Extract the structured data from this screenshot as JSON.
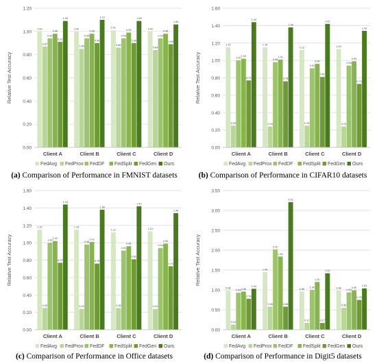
{
  "colors": [
    "#d6e7c3",
    "#b9d597",
    "#9cc46f",
    "#87b44f",
    "#6f9a35",
    "#4a7a1f"
  ],
  "legend": [
    "FedAvg",
    "FedProx",
    "FedDF",
    "FedSplit",
    "FedGen",
    "Ours"
  ],
  "chart_data": [
    {
      "type": "bar",
      "panel_label": "(a)",
      "caption": "Comparison of Performance in FMNIST datasets",
      "ylabel": "Relative Test Accuracy",
      "ylim": [
        0,
        1.2
      ],
      "yticks": [
        "0.00",
        "0.20",
        "0.40",
        "0.60",
        "0.80",
        "1.00",
        "1.20"
      ],
      "categories": [
        "Client A",
        "Client B",
        "Client C",
        "Client D"
      ],
      "series": [
        {
          "name": "FedAvg",
          "values": [
            1.0,
            1.0,
            1.01,
            1.0
          ]
        },
        {
          "name": "FedProx",
          "values": [
            0.87,
            0.85,
            0.86,
            0.84
          ]
        },
        {
          "name": "FedDF",
          "values": [
            0.94,
            0.94,
            0.94,
            0.94
          ]
        },
        {
          "name": "FedSplit",
          "values": [
            0.98,
            0.98,
            0.99,
            0.98
          ]
        },
        {
          "name": "FedGen",
          "values": [
            0.91,
            0.9,
            0.9,
            0.89
          ]
        },
        {
          "name": "Ours",
          "values": [
            1.09,
            1.1,
            1.09,
            1.06
          ]
        }
      ],
      "labels": [
        [
          "1.00",
          "0.87",
          "0.94",
          "0.98",
          "0.91",
          "1.09"
        ],
        [
          "1.00",
          "0.85",
          "0.94",
          "0.98",
          "0.90",
          "1.10"
        ],
        [
          "1.01",
          "0.86",
          "0.94",
          "0.99",
          "0.90",
          "1.09"
        ],
        [
          "1.00",
          "0.84",
          "0.94",
          "0.98",
          "0.89",
          "1.06"
        ]
      ]
    },
    {
      "type": "bar",
      "panel_label": "(b)",
      "caption": "Comparison of Performance in CIFAR10 datasets",
      "ylabel": "Relative Test Accuracy",
      "ylim": [
        0,
        1.6
      ],
      "yticks": [
        "0.00",
        "0.20",
        "0.40",
        "0.60",
        "0.80",
        "1.00",
        "1.20",
        "1.40",
        "1.60"
      ],
      "categories": [
        "Client A",
        "Client B",
        "Client C",
        "Client D"
      ],
      "series": [
        {
          "name": "FedAvg",
          "values": [
            1.15,
            1.15,
            1.12,
            1.13
          ]
        },
        {
          "name": "FedProx",
          "values": [
            0.25,
            0.24,
            0.25,
            0.24
          ]
        },
        {
          "name": "FedDF",
          "values": [
            1.0,
            0.98,
            0.91,
            0.94
          ]
        },
        {
          "name": "FedSplit",
          "values": [
            1.02,
            1.01,
            0.96,
            0.99
          ]
        },
        {
          "name": "FedGen",
          "values": [
            0.77,
            0.76,
            0.81,
            0.73
          ]
        },
        {
          "name": "Ours",
          "values": [
            1.44,
            1.38,
            1.42,
            1.34
          ]
        }
      ],
      "labels": [
        [
          "1.15",
          "0.25",
          "1.00",
          "1.02",
          "0.77",
          "1.44"
        ],
        [
          "1.15",
          "0.24",
          "0.98",
          "1.01",
          "0.76",
          "1.38"
        ],
        [
          "1.12",
          "0.25",
          "0.91",
          "0.96",
          "0.81",
          "1.42"
        ],
        [
          "1.13",
          "0.24",
          "0.94",
          "0.99",
          "0.73",
          "1.34"
        ]
      ]
    },
    {
      "type": "bar",
      "panel_label": "(c)",
      "caption": "Comparison of Performance in Office datasets",
      "ylabel": "Relative Test Accuracy",
      "ylim": [
        0,
        1.6
      ],
      "yticks": [
        "0.00",
        "0.20",
        "0.40",
        "0.60",
        "0.80",
        "1.00",
        "1.20",
        "1.40",
        "1.60"
      ],
      "categories": [
        "Client A",
        "Client B",
        "Client C",
        "Client D"
      ],
      "series": [
        {
          "name": "FedAvg",
          "values": [
            1.15,
            1.15,
            1.12,
            1.13
          ]
        },
        {
          "name": "FedProx",
          "values": [
            0.25,
            0.24,
            0.25,
            0.24
          ]
        },
        {
          "name": "FedDF",
          "values": [
            1.0,
            0.98,
            0.91,
            0.94
          ]
        },
        {
          "name": "FedSplit",
          "values": [
            1.02,
            1.01,
            0.96,
            0.99
          ]
        },
        {
          "name": "FedGen",
          "values": [
            0.77,
            0.76,
            0.81,
            0.73
          ]
        },
        {
          "name": "Ours",
          "values": [
            1.44,
            1.38,
            1.42,
            1.34
          ]
        }
      ],
      "labels": [
        [
          "1.15",
          "0.25",
          "1.00",
          "1.02",
          "0.77",
          "1.44"
        ],
        [
          "1.15",
          "0.24",
          "0.98",
          "1.01",
          "0.76",
          "1.38"
        ],
        [
          "1.12",
          "0.25",
          "0.91",
          "0.96",
          "0.81",
          "1.42"
        ],
        [
          "1.13",
          "0.24",
          "0.94",
          "0.99",
          "0.73",
          "1.34"
        ]
      ]
    },
    {
      "type": "bar",
      "panel_label": "(d)",
      "caption": "Comparison of Performance in Digit5 datasets",
      "ylabel": "Relative Test Accuracy",
      "ylim": [
        0,
        3.5
      ],
      "yticks": [
        "0.00",
        "0.50",
        "1.00",
        "1.50",
        "2.00",
        "2.50",
        "3.00",
        "3.50"
      ],
      "categories": [
        "Client A",
        "Client B",
        "Client C",
        "Client D"
      ],
      "series": [
        {
          "name": "FedAvg",
          "values": [
            0.98,
            1.45,
            0.96,
            0.98
          ]
        },
        {
          "name": "FedProx",
          "values": [
            0.13,
            0.58,
            0.17,
            0.55
          ]
        },
        {
          "name": "FedDF",
          "values": [
            0.93,
            2.02,
            1.0,
            0.94
          ]
        },
        {
          "name": "FedSplit",
          "values": [
            0.96,
            1.84,
            1.2,
            0.99
          ]
        },
        {
          "name": "FedGen",
          "values": [
            0.78,
            0.58,
            0.17,
            0.75
          ]
        },
        {
          "name": "Ours",
          "values": [
            1.03,
            3.21,
            1.42,
            1.04
          ]
        }
      ],
      "labels": [
        [
          "0.98",
          "0.13",
          "0.93",
          "0.96",
          "0.78",
          "1.03"
        ],
        [
          "1.45",
          "0.58",
          "2.02",
          "1.84",
          "0.58",
          "3.21"
        ],
        [
          "0.96",
          "0.17",
          "1.00",
          "1.20",
          "0.17",
          "1.42"
        ],
        [
          "0.98",
          "0.55",
          "0.94",
          "0.99",
          "0.75",
          "1.04"
        ]
      ]
    }
  ]
}
